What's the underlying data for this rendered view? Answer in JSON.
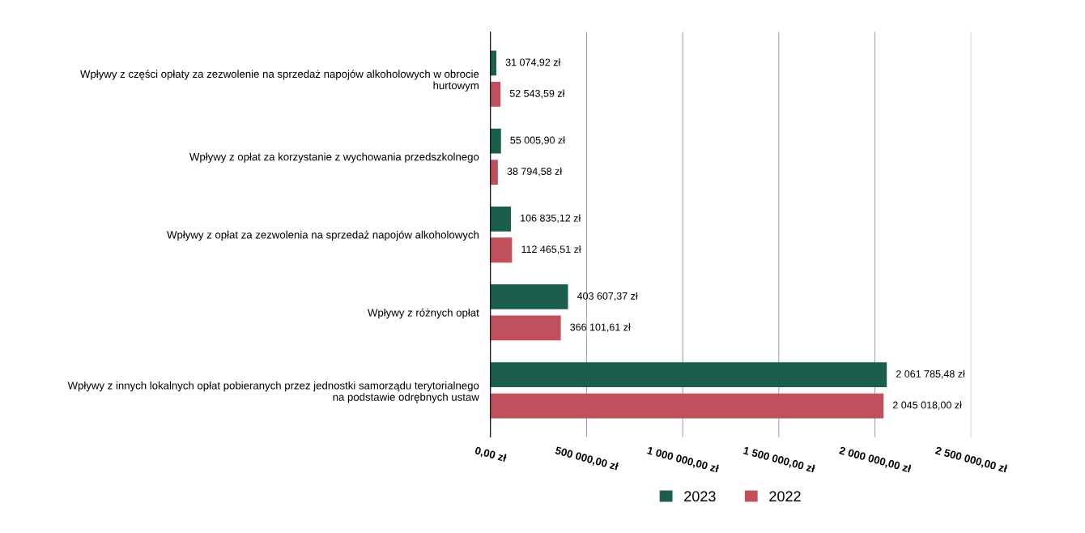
{
  "chart_data": {
    "type": "bar",
    "orientation": "horizontal",
    "categories": [
      "Wpływy z części opłaty za zezwolenie na sprzedaż napojów alkoholowych w obrocie\nhurtowym",
      "Wpływy z opłat za korzystanie z wychowania przedszkolnego",
      "Wpływy z opłat za zezwolenia na sprzedaż napojów alkoholowych",
      "Wpływy z różnych opłat",
      "Wpływy z innych lokalnych opłat pobieranych przez jednostki samorządu terytorialnego\nna podstawie odrębnych ustaw"
    ],
    "series": [
      {
        "name": "2023",
        "color": "#1b5e4b",
        "values": [
          31074.92,
          55005.9,
          106835.12,
          403607.37,
          2061785.48
        ],
        "value_labels": [
          "31 074,92 zł",
          "55 005,90 zł",
          "106 835,12 zł",
          "403 607,37 zł",
          "2 061 785,48 zł"
        ]
      },
      {
        "name": "2022",
        "color": "#c0505c",
        "values": [
          52543.59,
          38794.58,
          112465.51,
          366101.61,
          2045018.0
        ],
        "value_labels": [
          "52 543,59 zł",
          "38 794,58 zł",
          "112 465,51 zł",
          "366 101,61 zł",
          "2 045 018,00 zł"
        ]
      }
    ],
    "xlim": [
      0,
      2500000
    ],
    "xticks": [
      {
        "value": 0,
        "label": "0,00 zł"
      },
      {
        "value": 500000,
        "label": "500 000,00 zł"
      },
      {
        "value": 1000000,
        "label": "1 000 000,00 zł"
      },
      {
        "value": 1500000,
        "label": "1 500 000,00 zł"
      },
      {
        "value": 2000000,
        "label": "2 000 000,00 zł"
      },
      {
        "value": 2500000,
        "label": "2 500 000,00 zł"
      }
    ],
    "grid": "x",
    "legend": "bottom"
  }
}
